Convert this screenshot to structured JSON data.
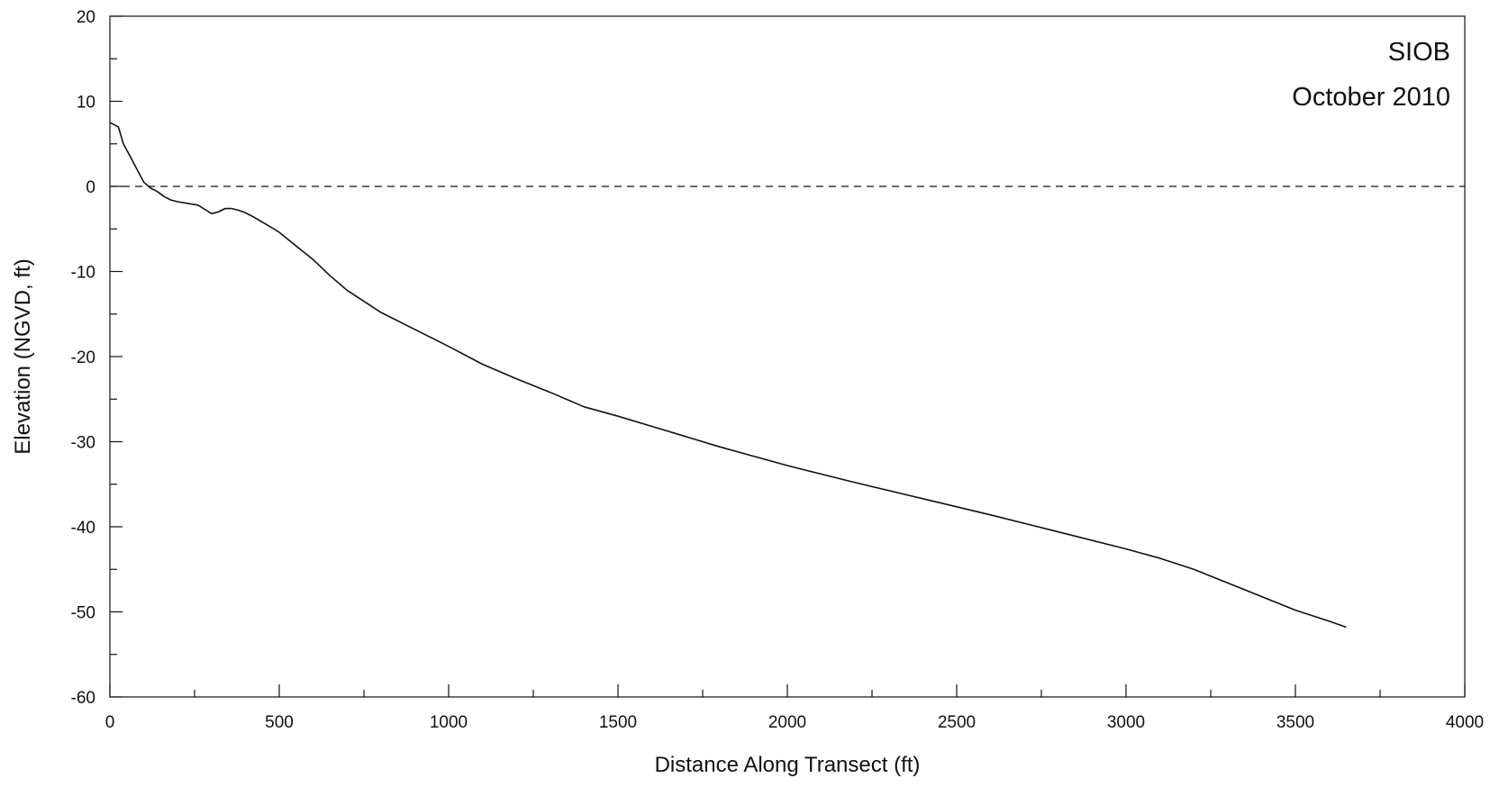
{
  "chart_data": {
    "type": "line",
    "title": "SIOB",
    "subtitle": "October 2010",
    "xlabel": "Distance Along Transect (ft)",
    "ylabel": "Elevation (NGVD, ft)",
    "xlim": [
      0,
      4000
    ],
    "ylim": [
      -60,
      20
    ],
    "x_ticks": [
      0,
      500,
      1000,
      1500,
      2000,
      2500,
      3000,
      3500,
      4000
    ],
    "y_ticks": [
      20,
      10,
      0,
      -10,
      -20,
      -30,
      -40,
      -50,
      -60
    ],
    "grid": false,
    "reference_line": {
      "y": 0,
      "style": "dashed"
    },
    "series": [
      {
        "x": [
          0,
          25,
          40,
          60,
          80,
          100,
          120,
          140,
          160,
          180,
          200,
          260,
          280,
          300,
          320,
          340,
          360,
          380,
          400,
          420,
          450,
          480,
          500,
          550,
          600,
          650,
          700,
          800,
          900,
          1000,
          1100,
          1200,
          1300,
          1400,
          1500,
          1600,
          1700,
          1800,
          1900,
          2000,
          2200,
          2400,
          2600,
          2800,
          3000,
          3100,
          3200,
          3300,
          3400,
          3500,
          3600,
          3650
        ],
        "y": [
          7.5,
          7.0,
          5.0,
          3.5,
          2.0,
          0.5,
          -0.2,
          -0.6,
          -1.2,
          -1.6,
          -1.8,
          -2.2,
          -2.7,
          -3.2,
          -3.0,
          -2.6,
          -2.6,
          -2.8,
          -3.1,
          -3.5,
          -4.2,
          -4.9,
          -5.4,
          -7.0,
          -8.6,
          -10.5,
          -12.2,
          -14.8,
          -16.8,
          -18.8,
          -20.9,
          -22.6,
          -24.2,
          -25.9,
          -27.0,
          -28.2,
          -29.4,
          -30.6,
          -31.7,
          -32.8,
          -34.8,
          -36.7,
          -38.6,
          -40.6,
          -42.6,
          -43.7,
          -45.0,
          -46.6,
          -48.2,
          -49.8,
          -51.1,
          -51.8
        ]
      }
    ]
  }
}
